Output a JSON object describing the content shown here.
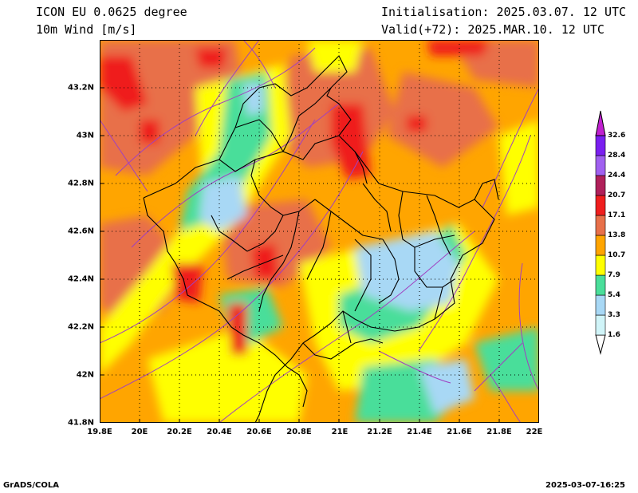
{
  "header": {
    "model_title": "ICON EU 0.0625 degree",
    "variable_title": "10m Wind [m/s]",
    "initialisation": "Initialisation: 2025.03.07. 12 UTC",
    "valid": "Valid(+72): 2025.MAR.10. 12 UTC"
  },
  "map": {
    "lon_range": [
      19.8,
      22.0
    ],
    "lat_range": [
      41.8,
      43.4
    ],
    "lon_ticks": [
      "19.8E",
      "20E",
      "20.2E",
      "20.4E",
      "20.6E",
      "20.8E",
      "21E",
      "21.2E",
      "21.4E",
      "21.6E",
      "21.8E",
      "22E"
    ],
    "lat_ticks": [
      "41.8N",
      "42N",
      "42.2N",
      "42.4N",
      "42.6N",
      "42.8N",
      "43N",
      "43.2N"
    ],
    "gridlines": true
  },
  "colorbar": {
    "levels": [
      "1.6",
      "3.3",
      "5.4",
      "7.9",
      "10.7",
      "13.8",
      "17.1",
      "20.7",
      "24.4",
      "28.4",
      "32.6"
    ],
    "colors": [
      "#d0f4f8",
      "#a8d8f5",
      "#4ade9a",
      "#ffff00",
      "#ffa500",
      "#e8704a",
      "#ef1e1e",
      "#b0205a",
      "#a060f0",
      "#7a1ff0",
      "#c020d0"
    ]
  },
  "footer": {
    "left": "GrADS/COLA",
    "right": "2025-03-07-16:25"
  }
}
